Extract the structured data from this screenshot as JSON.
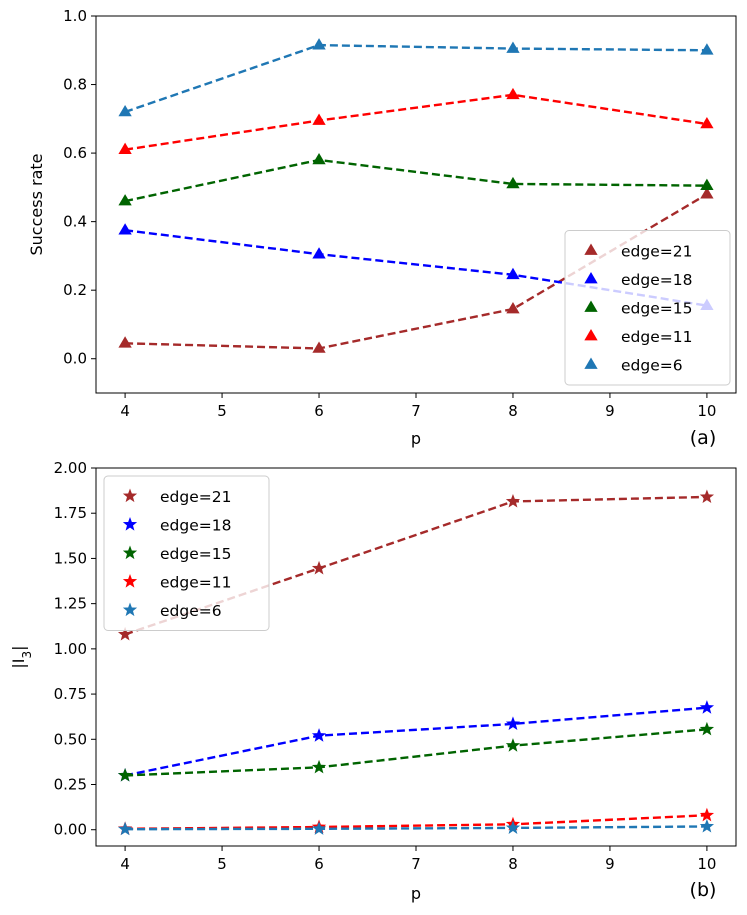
{
  "chart_data": [
    {
      "type": "line",
      "panel_label": "(a)",
      "xlabel": "p",
      "ylabel": "Success rate",
      "xlim": [
        3.7,
        10.3
      ],
      "ylim": [
        -0.1,
        1.0
      ],
      "xticks": [
        4,
        5,
        6,
        7,
        8,
        9,
        10
      ],
      "yticks": [
        0.0,
        0.2,
        0.4,
        0.6,
        0.8,
        1.0
      ],
      "ytick_labels": [
        "0.0",
        "0.2",
        "0.4",
        "0.6",
        "0.8",
        "1.0"
      ],
      "marker": "triangle",
      "legend_position": "lower-right",
      "x": [
        4,
        6,
        8,
        10
      ],
      "series": [
        {
          "name": "edge=21",
          "color": "#a52a2a",
          "values": [
            0.045,
            0.03,
            0.145,
            0.48
          ]
        },
        {
          "name": "edge=18",
          "color": "#0000ff",
          "values": [
            0.375,
            0.305,
            0.245,
            0.155
          ]
        },
        {
          "name": "edge=15",
          "color": "#006400",
          "values": [
            0.46,
            0.58,
            0.51,
            0.505
          ]
        },
        {
          "name": "edge=11",
          "color": "#ff0000",
          "values": [
            0.61,
            0.695,
            0.77,
            0.685
          ]
        },
        {
          "name": "edge=6",
          "color": "#1f77b4",
          "values": [
            0.72,
            0.915,
            0.905,
            0.9
          ]
        }
      ]
    },
    {
      "type": "line",
      "panel_label": "(b)",
      "xlabel": "p",
      "ylabel": "|I",
      "ylabel_sub": "3",
      "ylabel_end": "|",
      "xlim": [
        3.7,
        10.3
      ],
      "ylim": [
        -0.09,
        2.0
      ],
      "xticks": [
        4,
        5,
        6,
        7,
        8,
        9,
        10
      ],
      "yticks": [
        0.0,
        0.25,
        0.5,
        0.75,
        1.0,
        1.25,
        1.5,
        1.75,
        2.0
      ],
      "ytick_labels": [
        "0.00",
        "0.25",
        "0.50",
        "0.75",
        "1.00",
        "1.25",
        "1.50",
        "1.75",
        "2.00"
      ],
      "marker": "star",
      "legend_position": "upper-left",
      "x": [
        4,
        6,
        8,
        10
      ],
      "series": [
        {
          "name": "edge=21",
          "color": "#a52a2a",
          "values": [
            1.08,
            1.445,
            1.815,
            1.84
          ]
        },
        {
          "name": "edge=18",
          "color": "#0000ff",
          "values": [
            0.3,
            0.52,
            0.585,
            0.675
          ]
        },
        {
          "name": "edge=15",
          "color": "#006400",
          "values": [
            0.3,
            0.345,
            0.465,
            0.555
          ]
        },
        {
          "name": "edge=11",
          "color": "#ff0000",
          "values": [
            0.005,
            0.015,
            0.03,
            0.08
          ]
        },
        {
          "name": "edge=6",
          "color": "#1f77b4",
          "values": [
            0.003,
            0.005,
            0.01,
            0.018
          ]
        }
      ]
    }
  ]
}
